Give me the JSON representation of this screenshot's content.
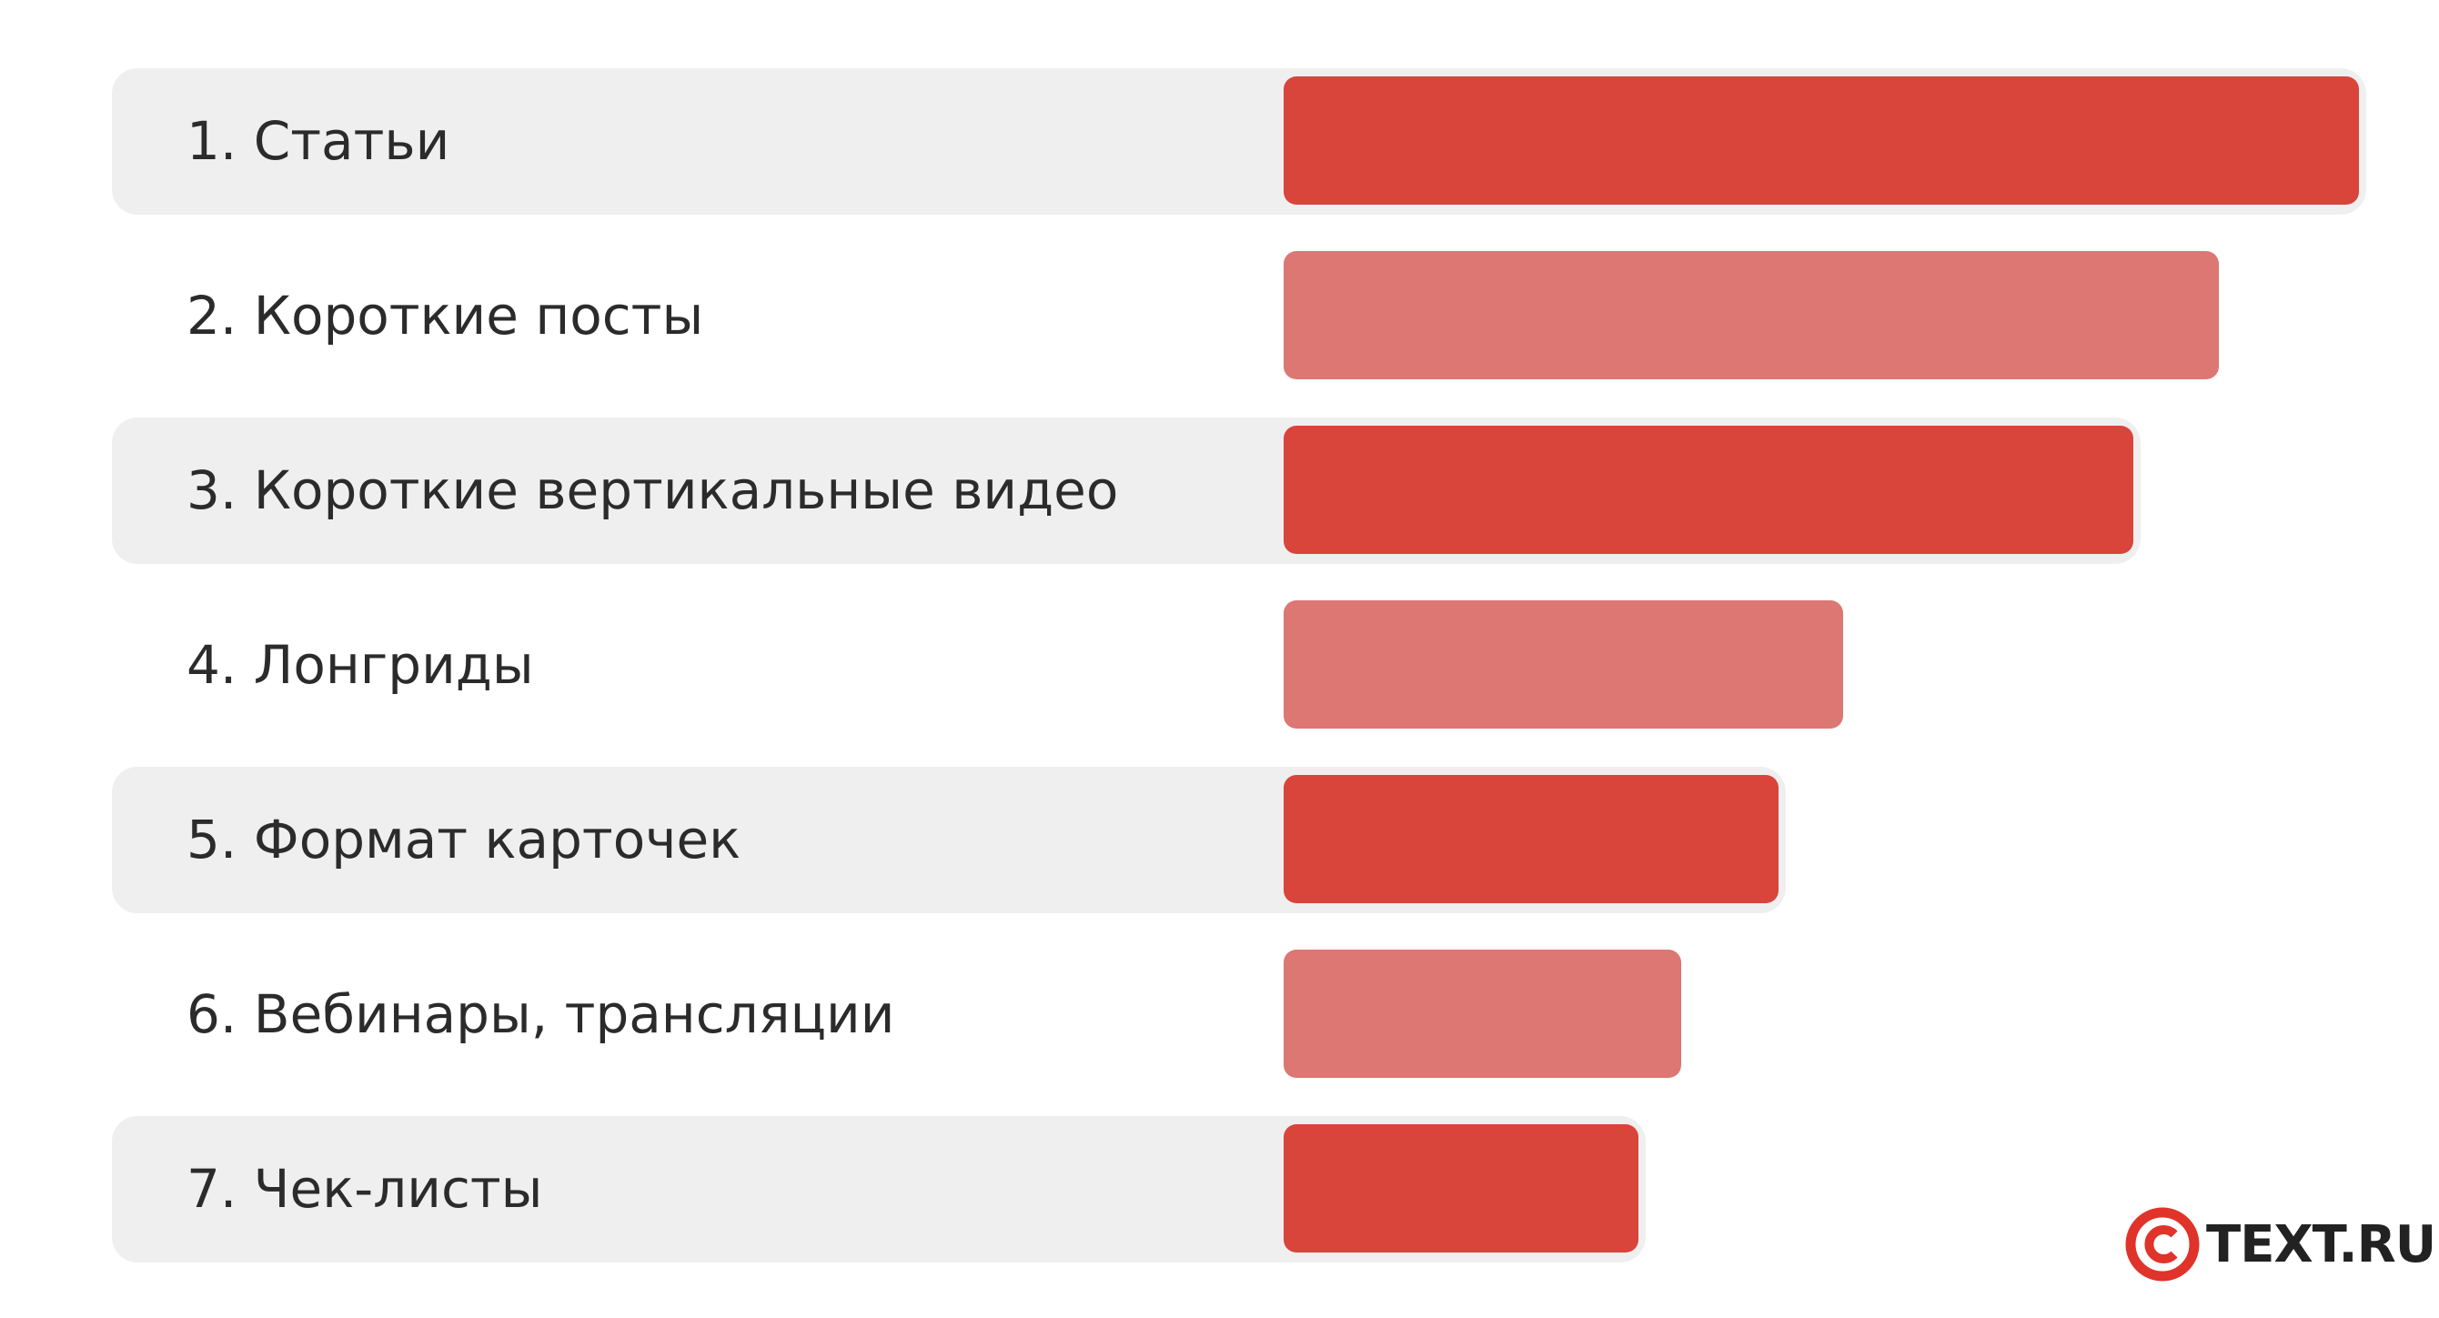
{
  "chart_data": {
    "type": "bar",
    "orientation": "horizontal",
    "categories": [
      "1. Статьи",
      "2. Короткие посты",
      "3. Короткие вертикальные видео",
      "4. Лонгриды",
      "5. Формат карточек",
      "6. Вебинары, трансляции",
      "7. Чек-листы"
    ],
    "values": [
      100,
      87,
      79,
      52,
      46,
      37,
      33
    ],
    "value_scale": "relative (no axis printed)",
    "grid": false,
    "legend": "none"
  },
  "colors": {
    "bar_dark": "#d9443b",
    "bar_light": "#dc7773",
    "row_shade": "#efefef",
    "logo_red": "#e0332a",
    "text": "#2b2b2b"
  },
  "logo": {
    "text": "TEXT.RU",
    "icon": "copyright-circle-icon"
  }
}
